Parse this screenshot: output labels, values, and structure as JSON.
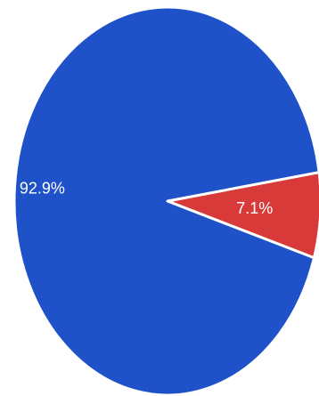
{
  "chart_data": {
    "type": "pie",
    "slices": [
      {
        "label": "7.1%",
        "value": 7.1,
        "color": "#d83a3a"
      },
      {
        "label": "92.9%",
        "value": 92.9,
        "color": "#1f52c9"
      }
    ],
    "start_angle_deg": -17,
    "direction": "counterclockwise",
    "legend": "none",
    "slice_border_color": "#ffffff"
  }
}
